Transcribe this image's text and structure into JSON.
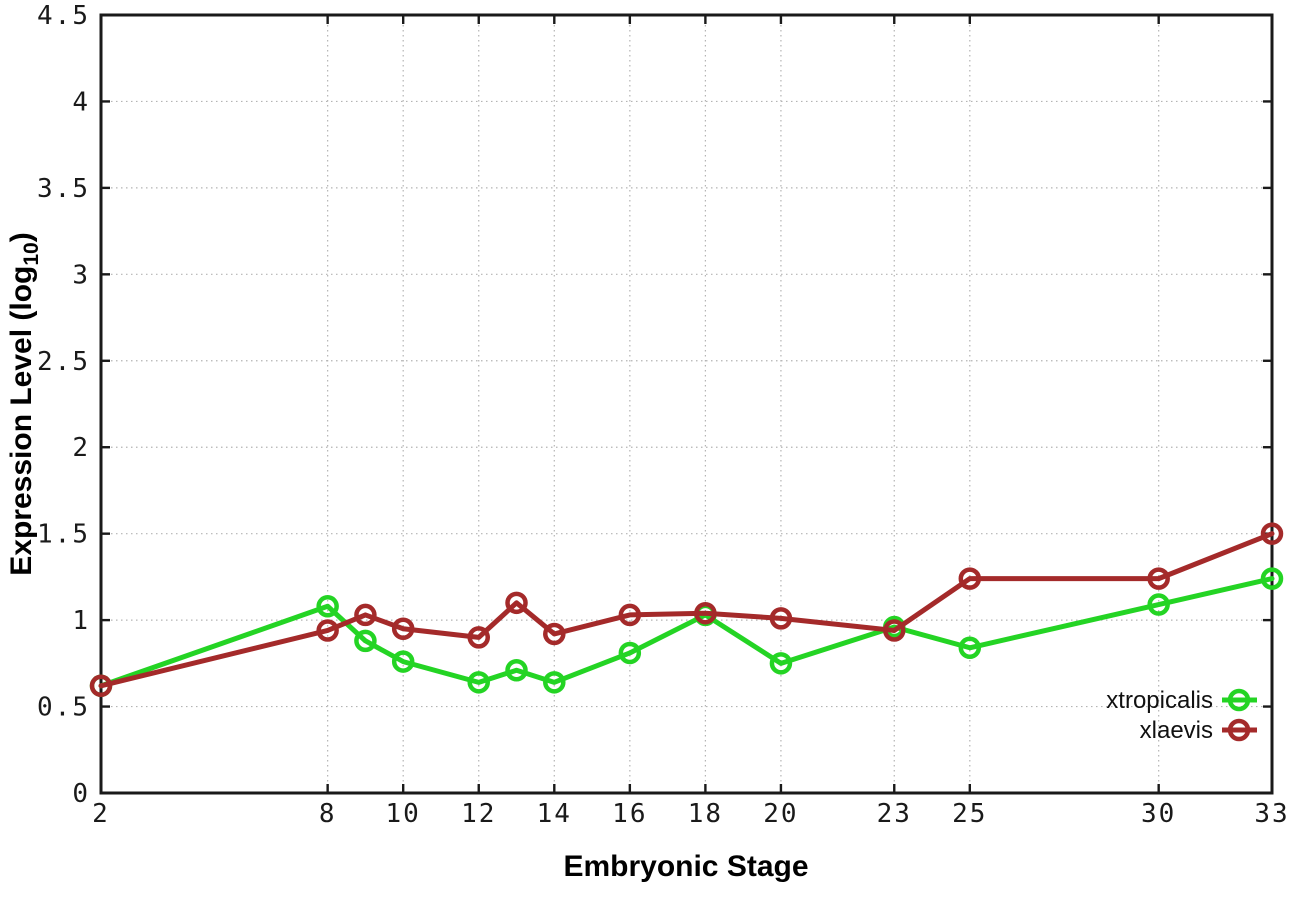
{
  "figure": {
    "background": "#ffffff",
    "border_color": "#1a1a1a",
    "grid_color": "#b4b4b4"
  },
  "chart_data": {
    "type": "line",
    "title": "",
    "xlabel": "Embryonic Stage",
    "ylabel": "Expression Level (log10)",
    "ylabel_parts": {
      "prefix": "Expression Level (log",
      "sub": "10",
      "suffix": ")"
    },
    "xlim": [
      2,
      33
    ],
    "ylim": [
      0,
      4.5
    ],
    "x_ticks": [
      2,
      8,
      10,
      12,
      14,
      16,
      18,
      20,
      23,
      25,
      30,
      33
    ],
    "y_ticks": [
      {
        "v": 0,
        "label": "0"
      },
      {
        "v": 0.5,
        "label": "0.5"
      },
      {
        "v": 1,
        "label": "1"
      },
      {
        "v": 1.5,
        "label": "1.5"
      },
      {
        "v": 2,
        "label": "2"
      },
      {
        "v": 2.5,
        "label": "2.5"
      },
      {
        "v": 3,
        "label": "3"
      },
      {
        "v": 3.5,
        "label": "3.5"
      },
      {
        "v": 4,
        "label": "4"
      },
      {
        "v": 4.5,
        "label": "4.5"
      }
    ],
    "grid": "dotted",
    "legend_position": "bottom-right-inside",
    "x": [
      2,
      8,
      9,
      10,
      12,
      13,
      14,
      16,
      18,
      20,
      23,
      25,
      30,
      33
    ],
    "series": [
      {
        "name": "xtropicalis",
        "color": "#24d424",
        "marker": "open-circle",
        "values": [
          0.62,
          1.08,
          0.88,
          0.76,
          0.64,
          0.71,
          0.64,
          0.81,
          1.03,
          0.75,
          0.96,
          0.84,
          1.09,
          1.24
        ]
      },
      {
        "name": "xlaevis",
        "color": "#a42a2a",
        "marker": "open-circle",
        "values": [
          0.62,
          0.94,
          1.03,
          0.95,
          0.9,
          1.1,
          0.92,
          1.03,
          1.04,
          1.01,
          0.94,
          1.24,
          1.24,
          1.5
        ]
      }
    ]
  }
}
